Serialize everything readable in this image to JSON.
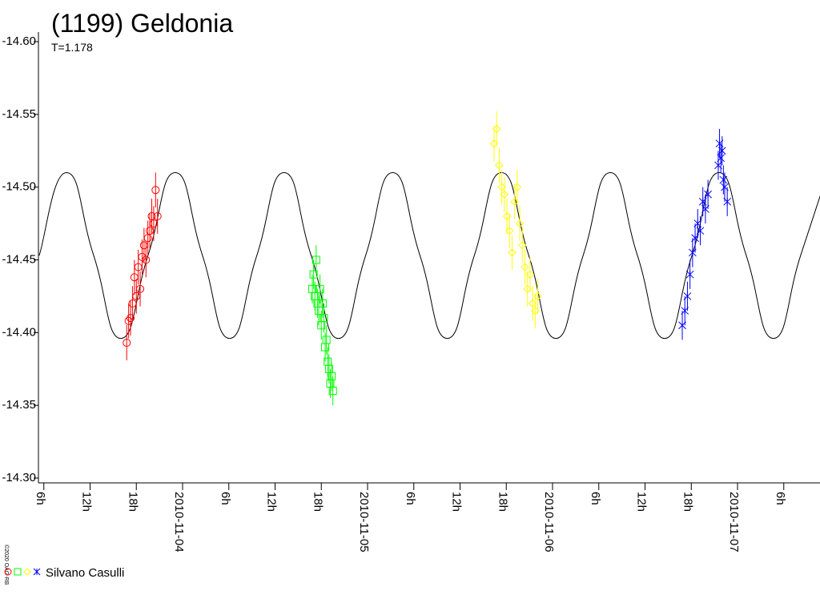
{
  "chart_data": {
    "type": "scatter",
    "title": "(1199) Geldonia",
    "subtitle": "T=1.178",
    "copyright": "©2020 OAG-RB",
    "legend_label": "Silvano Casulli",
    "xlim": [
      "2010-11-03T05:18",
      "2010-11-07T10:42"
    ],
    "xticks": [
      {
        "value": "2010-11-03T06:00",
        "label": "6h"
      },
      {
        "value": "2010-11-03T12:00",
        "label": "12h"
      },
      {
        "value": "2010-11-03T18:00",
        "label": "18h"
      },
      {
        "value": "2010-11-04T00:00",
        "label": "2010-11-04"
      },
      {
        "value": "2010-11-04T06:00",
        "label": "6h"
      },
      {
        "value": "2010-11-04T12:00",
        "label": "12h"
      },
      {
        "value": "2010-11-04T18:00",
        "label": "18h"
      },
      {
        "value": "2010-11-05T00:00",
        "label": "2010-11-05"
      },
      {
        "value": "2010-11-05T06:00",
        "label": "6h"
      },
      {
        "value": "2010-11-05T12:00",
        "label": "12h"
      },
      {
        "value": "2010-11-05T18:00",
        "label": "18h"
      },
      {
        "value": "2010-11-06T00:00",
        "label": "2010-11-06"
      },
      {
        "value": "2010-11-06T06:00",
        "label": "6h"
      },
      {
        "value": "2010-11-06T12:00",
        "label": "12h"
      },
      {
        "value": "2010-11-06T18:00",
        "label": "18h"
      },
      {
        "value": "2010-11-07T00:00",
        "label": "2010-11-07"
      },
      {
        "value": "2010-11-07T06:00",
        "label": "6h"
      }
    ],
    "ylim": [
      -14.3,
      -14.6
    ],
    "yticks": [
      {
        "value": -14.6,
        "label": "-14.60"
      },
      -14.55,
      {
        "value": -14.5,
        "label": "-14.50"
      },
      -14.45,
      {
        "value": -14.4,
        "label": "-14.40"
      },
      -14.35,
      {
        "value": -14.3,
        "label": "-14.30"
      }
    ],
    "model": {
      "color": "#000000",
      "x": [
        "2010-11-03T05:24",
        "2010-11-03T08:56",
        "2010-11-03T12:28",
        "2010-11-03T15:59",
        "2010-11-03T19:31",
        "2010-11-03T23:03",
        "2010-11-04T02:35",
        "2010-11-04T06:06",
        "2010-11-04T09:38",
        "2010-11-04T13:10",
        "2010-11-04T16:41",
        "2010-11-04T20:13",
        "2010-11-04T23:45",
        "2010-11-05T03:16",
        "2010-11-05T06:48",
        "2010-11-05T10:20",
        "2010-11-05T13:51",
        "2010-11-05T17:23",
        "2010-11-05T20:55",
        "2010-11-06T00:26",
        "2010-11-06T03:58",
        "2010-11-06T07:30",
        "2010-11-06T11:01",
        "2010-11-06T14:33",
        "2010-11-06T18:05",
        "2010-11-06T21:36",
        "2010-11-07T01:08",
        "2010-11-07T04:40",
        "2010-11-07T08:11",
        "2010-11-07T11:43"
      ],
      "values": [
        -14.453,
        -14.51,
        -14.453,
        -14.396,
        -14.453,
        -14.51,
        -14.453,
        -14.396,
        -14.453,
        -14.51,
        -14.453,
        -14.396,
        -14.453,
        -14.51,
        -14.453,
        -14.396,
        -14.453,
        -14.51,
        -14.453,
        -14.396,
        -14.453,
        -14.51,
        -14.453,
        -14.396,
        -14.453,
        -14.51,
        -14.453,
        -14.396,
        -14.453,
        -14.51
      ]
    },
    "series": [
      {
        "color": "#ff0000",
        "marker": "circle",
        "x": [
          "2010-11-03T16:45",
          "2010-11-03T17:00",
          "2010-11-03T17:15",
          "2010-11-03T17:30",
          "2010-11-03T17:45",
          "2010-11-03T18:00",
          "2010-11-03T18:15",
          "2010-11-03T18:30",
          "2010-11-03T18:45",
          "2010-11-03T19:00",
          "2010-11-03T19:15",
          "2010-11-03T19:30",
          "2010-11-03T19:45",
          "2010-11-03T20:00",
          "2010-11-03T20:15",
          "2010-11-03T20:30",
          "2010-11-03T20:45"
        ],
        "values": [
          -14.393,
          -14.408,
          -14.41,
          -14.42,
          -14.438,
          -14.425,
          -14.445,
          -14.43,
          -14.452,
          -14.46,
          -14.45,
          -14.465,
          -14.47,
          -14.48,
          -14.475,
          -14.498,
          -14.48
        ],
        "errors": [
          0.012,
          0.012,
          0.012,
          0.012,
          0.012,
          0.012,
          0.012,
          0.012,
          0.012,
          0.012,
          0.012,
          0.012,
          0.012,
          0.012,
          0.012,
          0.012,
          0.012
        ]
      },
      {
        "color": "#00ff00",
        "marker": "square",
        "x": [
          "2010-11-04T16:50",
          "2010-11-04T17:00",
          "2010-11-04T17:10",
          "2010-11-04T17:20",
          "2010-11-04T17:30",
          "2010-11-04T17:40",
          "2010-11-04T17:50",
          "2010-11-04T18:00",
          "2010-11-04T18:10",
          "2010-11-04T18:20",
          "2010-11-04T18:30",
          "2010-11-04T18:40",
          "2010-11-04T18:50",
          "2010-11-04T19:00",
          "2010-11-04T19:10",
          "2010-11-04T19:20",
          "2010-11-04T19:30"
        ],
        "values": [
          -14.43,
          -14.44,
          -14.425,
          -14.45,
          -14.42,
          -14.415,
          -14.43,
          -14.405,
          -14.42,
          -14.41,
          -14.39,
          -14.395,
          -14.38,
          -14.375,
          -14.365,
          -14.37,
          -14.36
        ],
        "errors": [
          0.01,
          0.01,
          0.01,
          0.01,
          0.01,
          0.01,
          0.01,
          0.01,
          0.01,
          0.01,
          0.01,
          0.01,
          0.01,
          0.01,
          0.01,
          0.01,
          0.01
        ]
      },
      {
        "color": "#ffff00",
        "marker": "diamond",
        "x": [
          "2010-11-05T16:25",
          "2010-11-05T16:45",
          "2010-11-05T17:05",
          "2010-11-05T17:25",
          "2010-11-05T17:45",
          "2010-11-05T18:05",
          "2010-11-05T18:25",
          "2010-11-05T18:45",
          "2010-11-05T19:05",
          "2010-11-05T19:25",
          "2010-11-05T19:45",
          "2010-11-05T20:05",
          "2010-11-05T20:25",
          "2010-11-05T20:45",
          "2010-11-05T21:05",
          "2010-11-05T21:25",
          "2010-11-05T21:45",
          "2010-11-05T22:05"
        ],
        "values": [
          -14.53,
          -14.54,
          -14.515,
          -14.5,
          -14.495,
          -14.48,
          -14.47,
          -14.455,
          -14.49,
          -14.5,
          -14.475,
          -14.46,
          -14.445,
          -14.43,
          -14.44,
          -14.42,
          -14.415,
          -14.425
        ],
        "errors": [
          0.012,
          0.012,
          0.012,
          0.012,
          0.012,
          0.012,
          0.012,
          0.012,
          0.012,
          0.012,
          0.012,
          0.012,
          0.012,
          0.012,
          0.012,
          0.012,
          0.012,
          0.012
        ]
      },
      {
        "color": "#0000ff",
        "marker": "star",
        "x": [
          "2010-11-06T16:50",
          "2010-11-06T17:10",
          "2010-11-06T17:30",
          "2010-11-06T17:50",
          "2010-11-06T18:10",
          "2010-11-06T18:30",
          "2010-11-06T18:50",
          "2010-11-06T19:10",
          "2010-11-06T19:30",
          "2010-11-06T19:50",
          "2010-11-06T20:10",
          "2010-11-06T21:30",
          "2010-11-06T21:40",
          "2010-11-06T21:50",
          "2010-11-06T22:00",
          "2010-11-06T22:10",
          "2010-11-06T22:20",
          "2010-11-06T22:40"
        ],
        "values": [
          -14.405,
          -14.415,
          -14.425,
          -14.44,
          -14.455,
          -14.465,
          -14.475,
          -14.47,
          -14.49,
          -14.485,
          -14.495,
          -14.515,
          -14.53,
          -14.52,
          -14.525,
          -14.505,
          -14.5,
          -14.49
        ],
        "errors": [
          0.01,
          0.01,
          0.01,
          0.01,
          0.01,
          0.01,
          0.01,
          0.01,
          0.01,
          0.01,
          0.01,
          0.01,
          0.01,
          0.01,
          0.01,
          0.01,
          0.01,
          0.01
        ]
      }
    ]
  }
}
